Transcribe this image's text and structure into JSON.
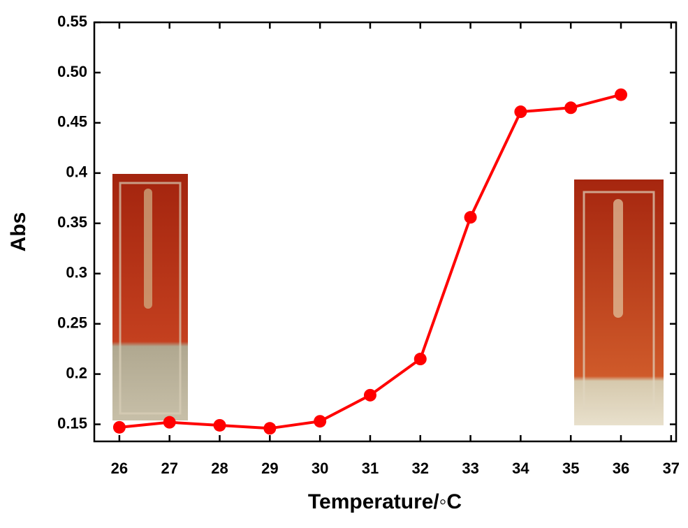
{
  "chart_data": {
    "type": "line",
    "x_label": "Temperature/◦C",
    "y_label": "Abs",
    "x": [
      26,
      27,
      28,
      29,
      30,
      31,
      32,
      33,
      34,
      35,
      36
    ],
    "series": [
      {
        "name": "Abs",
        "color": "#ff0000",
        "values": [
          0.147,
          0.152,
          0.149,
          0.146,
          0.153,
          0.179,
          0.215,
          0.356,
          0.461,
          0.465,
          0.478
        ]
      }
    ],
    "xlim": [
      25.5,
      37.1
    ],
    "xticks": [
      26,
      27,
      28,
      29,
      30,
      31,
      32,
      33,
      34,
      35,
      36,
      37
    ],
    "ylim": [
      0.133,
      0.55
    ],
    "yticks": [
      0.15,
      0.2,
      0.25,
      0.3,
      0.35,
      0.4,
      0.45,
      {
        "value": 0.5,
        "label": "0.50"
      },
      0.55
    ]
  }
}
